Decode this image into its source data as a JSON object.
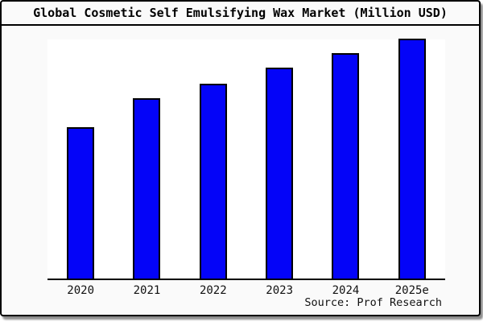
{
  "header": {
    "title": "Global Cosmetic Self Emulsifying Wax Market (Million USD)"
  },
  "footer": {
    "source_label": "Source: Prof Research"
  },
  "colors": {
    "bar_fill": "#0404F8",
    "bar_border": "#000000",
    "plot_background": "#ffffff",
    "canvas_background": "#fafafa",
    "frame_border": "#000000"
  },
  "chart_data": {
    "type": "bar",
    "title": "Global Cosmetic Self Emulsifying Wax Market (Million USD)",
    "categories": [
      "2020",
      "2021",
      "2022",
      "2023",
      "2024",
      "2025e"
    ],
    "values": [
      63,
      75,
      81,
      88,
      94,
      100
    ],
    "xlabel": "",
    "ylabel": "",
    "ylim": [
      0,
      105
    ],
    "y_axis_labels_visible": false,
    "gridlines": false,
    "legend_visible": false,
    "annotation": "Source: Prof Research",
    "note": "No y-axis scale shown in image; values are estimated relative bar heights with 2025e = 100"
  }
}
